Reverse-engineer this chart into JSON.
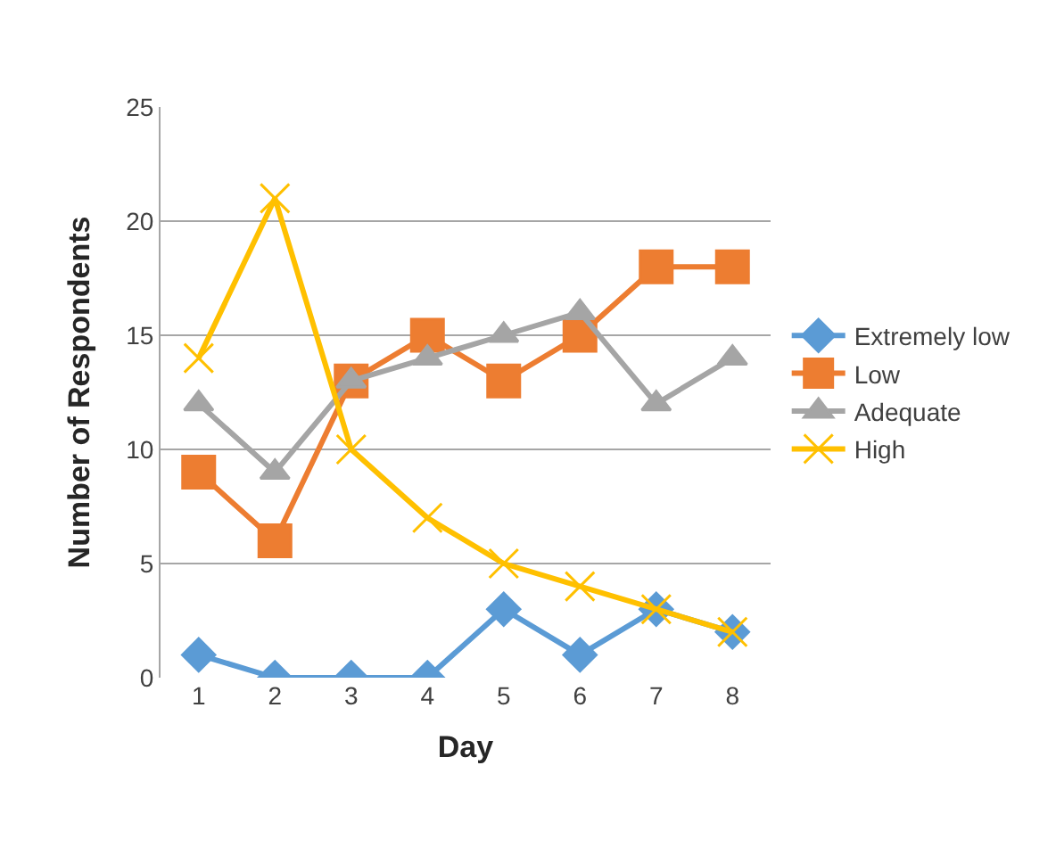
{
  "chart_data": {
    "type": "line",
    "xlabel": "Day",
    "ylabel": "Number of Respondents",
    "categories": [
      "1",
      "2",
      "3",
      "4",
      "5",
      "6",
      "7",
      "8"
    ],
    "series": [
      {
        "name": "Extremely low",
        "color": "#5b9bd5",
        "marker": "diamond",
        "values": [
          1,
          0,
          0,
          0,
          3,
          1,
          3,
          2
        ]
      },
      {
        "name": "Low",
        "color": "#ed7d31",
        "marker": "square",
        "values": [
          9,
          6,
          13,
          15,
          13,
          15,
          18,
          18
        ]
      },
      {
        "name": "Adequate",
        "color": "#a5a5a5",
        "marker": "triangle",
        "values": [
          12,
          9,
          13,
          14,
          15,
          16,
          12,
          14
        ]
      },
      {
        "name": "High",
        "color": "#ffc000",
        "marker": "cross",
        "values": [
          14,
          21,
          10,
          7,
          5,
          4,
          3,
          2
        ]
      }
    ],
    "ylim": [
      0,
      25
    ],
    "yticks": [
      0,
      5,
      10,
      15,
      20,
      25
    ],
    "grid": "y",
    "legend": "right",
    "line_style": "solid"
  }
}
